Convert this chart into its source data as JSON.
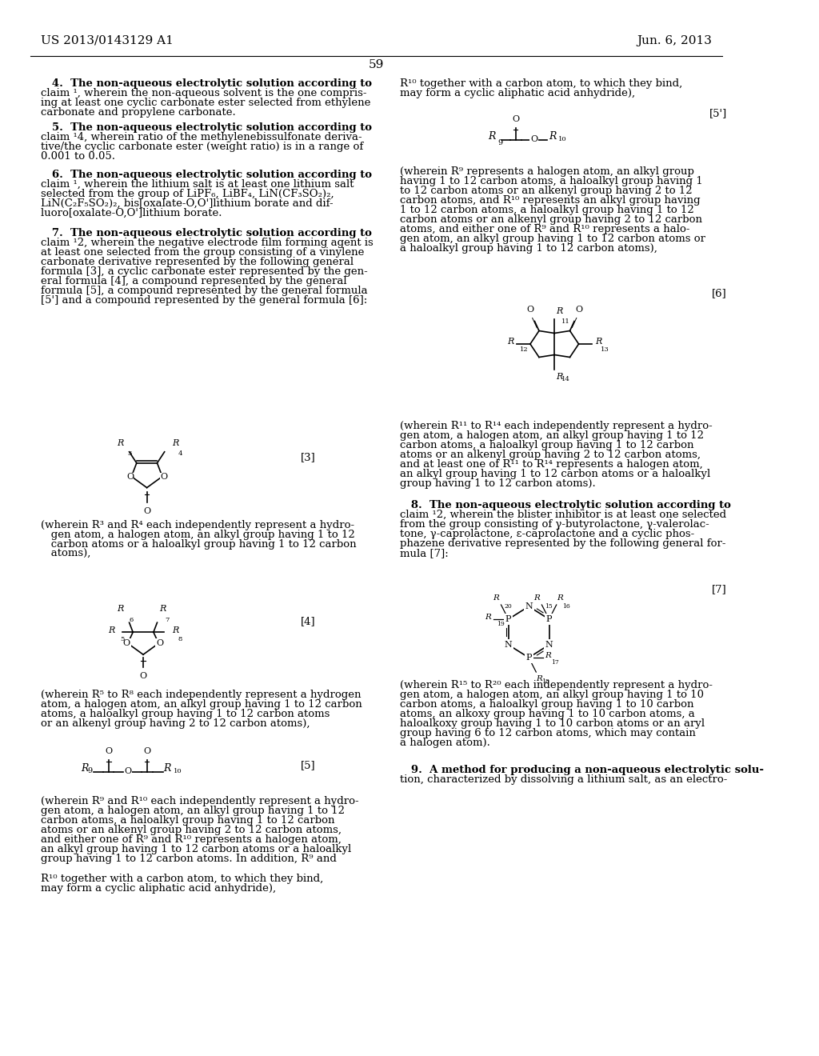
{
  "background_color": "#ffffff",
  "header_left": "US 2013/0143129 A1",
  "header_right": "Jun. 6, 2013",
  "page_number": "59",
  "figsize": [
    10.24,
    13.2
  ],
  "dpi": 100
}
